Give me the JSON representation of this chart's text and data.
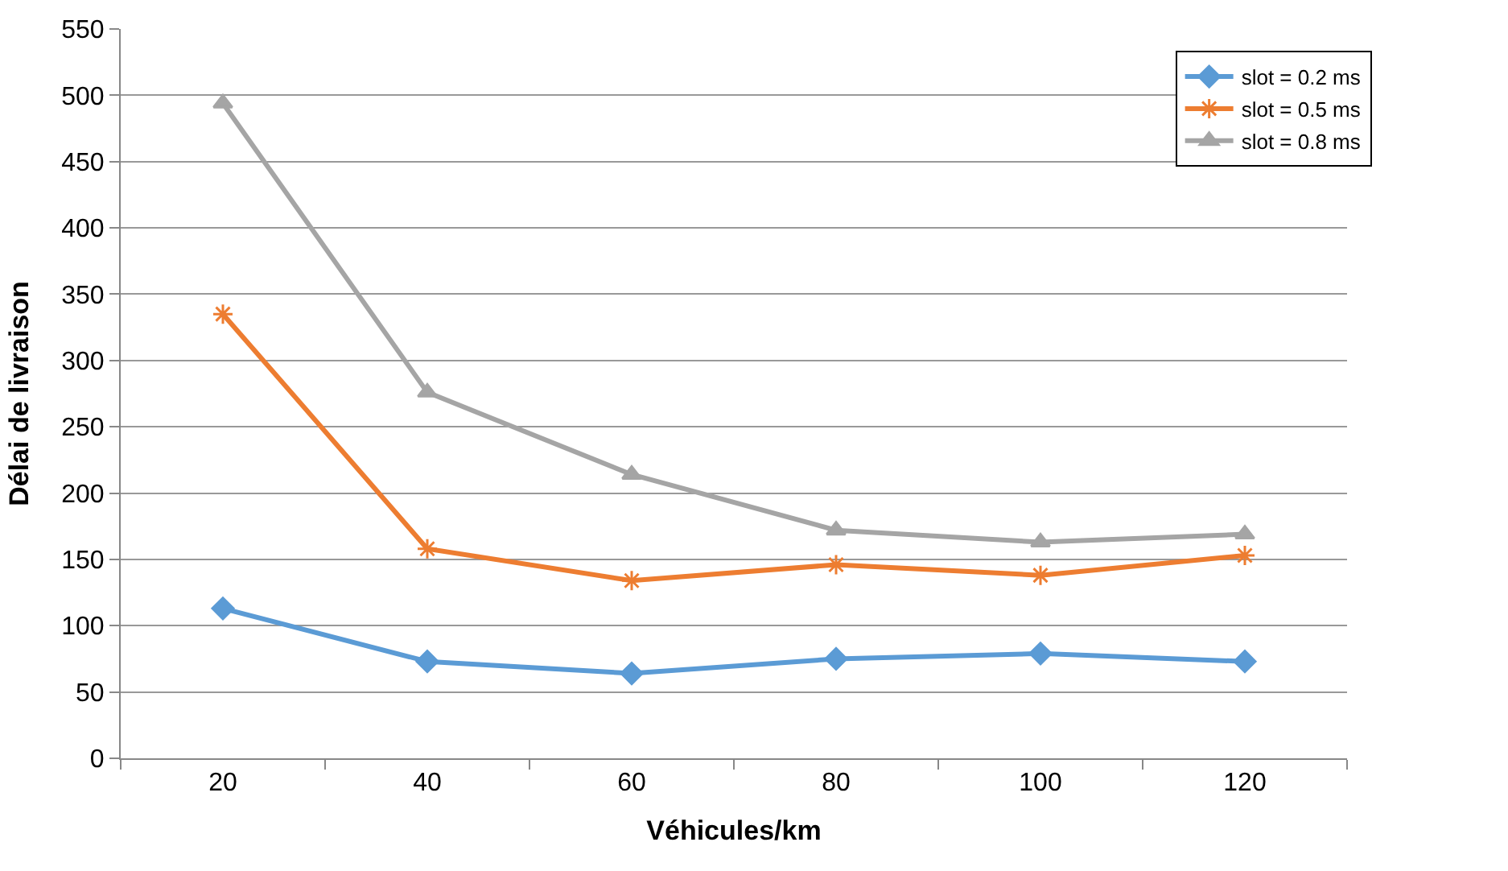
{
  "chart_data": {
    "type": "line",
    "xlabel": "Véhicules/km",
    "ylabel": "Délai de livraison",
    "categories": [
      "20",
      "40",
      "60",
      "80",
      "100",
      "120"
    ],
    "series": [
      {
        "name": "slot = 0.2 ms",
        "color": "#5b9bd5",
        "marker": "diamond",
        "values": [
          113,
          73,
          64,
          75,
          79,
          73
        ]
      },
      {
        "name": "slot = 0.5 ms",
        "color": "#ed7d31",
        "marker": "cross",
        "values": [
          335,
          158,
          134,
          146,
          138,
          153
        ]
      },
      {
        "name": "slot = 0.8 ms",
        "color": "#a5a5a5",
        "marker": "triangle",
        "values": [
          494,
          276,
          214,
          172,
          163,
          169
        ]
      }
    ],
    "ylim": [
      0,
      550
    ],
    "yticks": [
      0,
      50,
      100,
      150,
      200,
      250,
      300,
      350,
      400,
      450,
      500,
      550
    ],
    "grid": "y",
    "legend": "top right",
    "line_style": "solid"
  }
}
